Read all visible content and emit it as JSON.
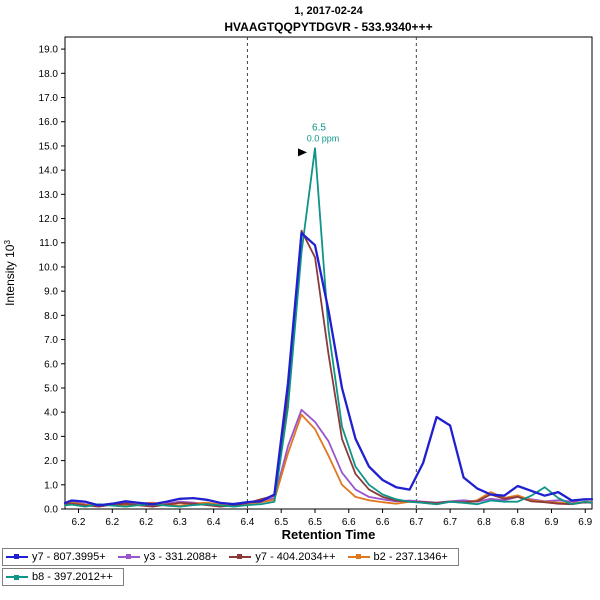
{
  "chart_data": {
    "type": "line",
    "title_line1": "1, 2017-02-24",
    "title_line2": "HVAAGTQQPYTDGVR - 533.9340+++",
    "xlabel": "Retention Time",
    "ylabel_base": "Intensity 10",
    "ylabel_sup": "3",
    "xlim": [
      6.13,
      6.91
    ],
    "ylim": [
      0,
      19.5
    ],
    "yticks": [
      "0.0",
      "1.0",
      "2.0",
      "3.0",
      "4.0",
      "5.0",
      "6.0",
      "7.0",
      "8.0",
      "9.0",
      "10.0",
      "11.0",
      "12.0",
      "13.0",
      "14.0",
      "15.0",
      "16.0",
      "17.0",
      "18.0",
      "19.0"
    ],
    "xticks": [
      {
        "v": 6.15,
        "label": "6.2"
      },
      {
        "v": 6.2,
        "label": "6.2"
      },
      {
        "v": 6.25,
        "label": "6.2"
      },
      {
        "v": 6.3,
        "label": "6.3"
      },
      {
        "v": 6.35,
        "label": "6.4"
      },
      {
        "v": 6.4,
        "label": "6.4"
      },
      {
        "v": 6.45,
        "label": "6.5"
      },
      {
        "v": 6.5,
        "label": "6.5"
      },
      {
        "v": 6.55,
        "label": "6.6"
      },
      {
        "v": 6.6,
        "label": "6.6"
      },
      {
        "v": 6.65,
        "label": "6.7"
      },
      {
        "v": 6.7,
        "label": "6.7"
      },
      {
        "v": 6.75,
        "label": "6.8"
      },
      {
        "v": 6.8,
        "label": "6.8"
      },
      {
        "v": 6.85,
        "label": "6.9"
      },
      {
        "v": 6.9,
        "label": "6.9"
      }
    ],
    "x": [
      6.13,
      6.14,
      6.16,
      6.18,
      6.2,
      6.22,
      6.24,
      6.26,
      6.28,
      6.3,
      6.32,
      6.34,
      6.36,
      6.38,
      6.4,
      6.42,
      6.44,
      6.46,
      6.48,
      6.5,
      6.52,
      6.54,
      6.56,
      6.58,
      6.6,
      6.62,
      6.64,
      6.66,
      6.68,
      6.7,
      6.72,
      6.74,
      6.76,
      6.78,
      6.8,
      6.82,
      6.84,
      6.86,
      6.88,
      6.9,
      6.91
    ],
    "series": [
      {
        "name": "y7 - 807.3995+",
        "color": "#2020d0",
        "width": 2.3,
        "values": [
          0.25,
          0.35,
          0.3,
          0.15,
          0.22,
          0.32,
          0.25,
          0.2,
          0.3,
          0.42,
          0.45,
          0.38,
          0.25,
          0.2,
          0.28,
          0.32,
          0.6,
          5.2,
          11.4,
          10.9,
          8.2,
          5.0,
          2.9,
          1.75,
          1.2,
          0.9,
          0.8,
          1.9,
          3.8,
          3.45,
          1.3,
          0.85,
          0.6,
          0.55,
          0.95,
          0.75,
          0.55,
          0.7,
          0.35,
          0.4,
          0.4
        ]
      },
      {
        "name": "y3 - 331.2088+",
        "color": "#9955cc",
        "width": 1.8,
        "values": [
          0.22,
          0.28,
          0.2,
          0.15,
          0.22,
          0.26,
          0.18,
          0.15,
          0.22,
          0.3,
          0.26,
          0.2,
          0.15,
          0.22,
          0.28,
          0.35,
          0.45,
          2.6,
          4.1,
          3.6,
          2.8,
          1.5,
          0.8,
          0.5,
          0.4,
          0.32,
          0.35,
          0.3,
          0.26,
          0.32,
          0.36,
          0.3,
          0.42,
          0.36,
          0.5,
          0.4,
          0.32,
          0.36,
          0.3,
          0.26,
          0.28
        ]
      },
      {
        "name": "y7 - 404.2034++",
        "color": "#8b3a3a",
        "width": 1.8,
        "values": [
          0.2,
          0.22,
          0.15,
          0.1,
          0.18,
          0.22,
          0.15,
          0.1,
          0.18,
          0.25,
          0.22,
          0.16,
          0.1,
          0.15,
          0.25,
          0.4,
          0.55,
          4.6,
          11.5,
          10.4,
          6.4,
          2.9,
          1.45,
          0.8,
          0.5,
          0.35,
          0.3,
          0.28,
          0.25,
          0.3,
          0.28,
          0.32,
          0.6,
          0.42,
          0.5,
          0.32,
          0.28,
          0.22,
          0.2,
          0.28,
          0.25
        ]
      },
      {
        "name": "b2 - 237.1346+",
        "color": "#e07820",
        "width": 1.8,
        "values": [
          0.2,
          0.26,
          0.18,
          0.14,
          0.2,
          0.15,
          0.22,
          0.26,
          0.18,
          0.14,
          0.22,
          0.26,
          0.18,
          0.14,
          0.22,
          0.28,
          0.38,
          2.3,
          3.9,
          3.3,
          2.2,
          1.0,
          0.5,
          0.36,
          0.28,
          0.22,
          0.3,
          0.26,
          0.2,
          0.3,
          0.26,
          0.36,
          0.7,
          0.46,
          0.56,
          0.36,
          0.3,
          0.26,
          0.22,
          0.3,
          0.28
        ]
      },
      {
        "name": "b8 - 397.2012++",
        "color": "#0e9488",
        "width": 1.8,
        "values": [
          0.15,
          0.18,
          0.1,
          0.2,
          0.14,
          0.1,
          0.16,
          0.2,
          0.14,
          0.1,
          0.16,
          0.2,
          0.15,
          0.1,
          0.16,
          0.2,
          0.3,
          4.2,
          10.6,
          14.9,
          7.4,
          3.4,
          1.75,
          1.0,
          0.6,
          0.4,
          0.3,
          0.25,
          0.2,
          0.3,
          0.25,
          0.2,
          0.35,
          0.3,
          0.3,
          0.55,
          0.9,
          0.45,
          0.2,
          0.3,
          0.25
        ]
      }
    ],
    "draw_order": [
      1,
      3,
      2,
      4,
      0
    ],
    "boundaries": [
      6.4,
      6.65
    ],
    "annotation": {
      "x": 6.5,
      "y": 14.9,
      "line1": "6.5",
      "line2": "0.0 ppm",
      "color": "#0e9488"
    },
    "legend_rows": [
      [
        0,
        1,
        2,
        3
      ],
      [
        4
      ]
    ]
  }
}
